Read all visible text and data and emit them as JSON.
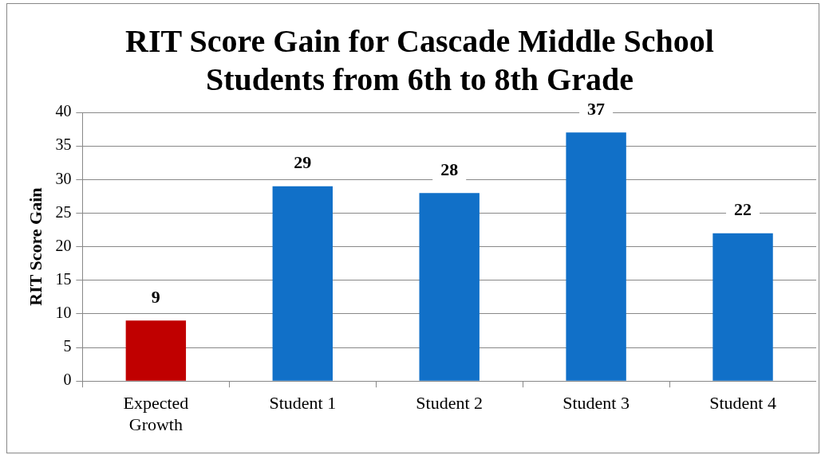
{
  "chart_data": {
    "type": "bar",
    "title": "RIT Score Gain for Cascade Middle School Students from 6th to 8th Grade",
    "ylabel": "RIT Score Gain",
    "categories": [
      "Expected Growth",
      "Student 1",
      "Student 2",
      "Student 3",
      "Student 4"
    ],
    "values": [
      9,
      29,
      28,
      37,
      22
    ],
    "colors": [
      "#c00000",
      "#1170c8",
      "#1170c8",
      "#1170c8",
      "#1170c8"
    ],
    "ylim": [
      0,
      40
    ],
    "yticks": [
      0,
      5,
      10,
      15,
      20,
      25,
      30,
      35,
      40
    ],
    "grid": "y",
    "legend": false,
    "data_labels": true
  }
}
